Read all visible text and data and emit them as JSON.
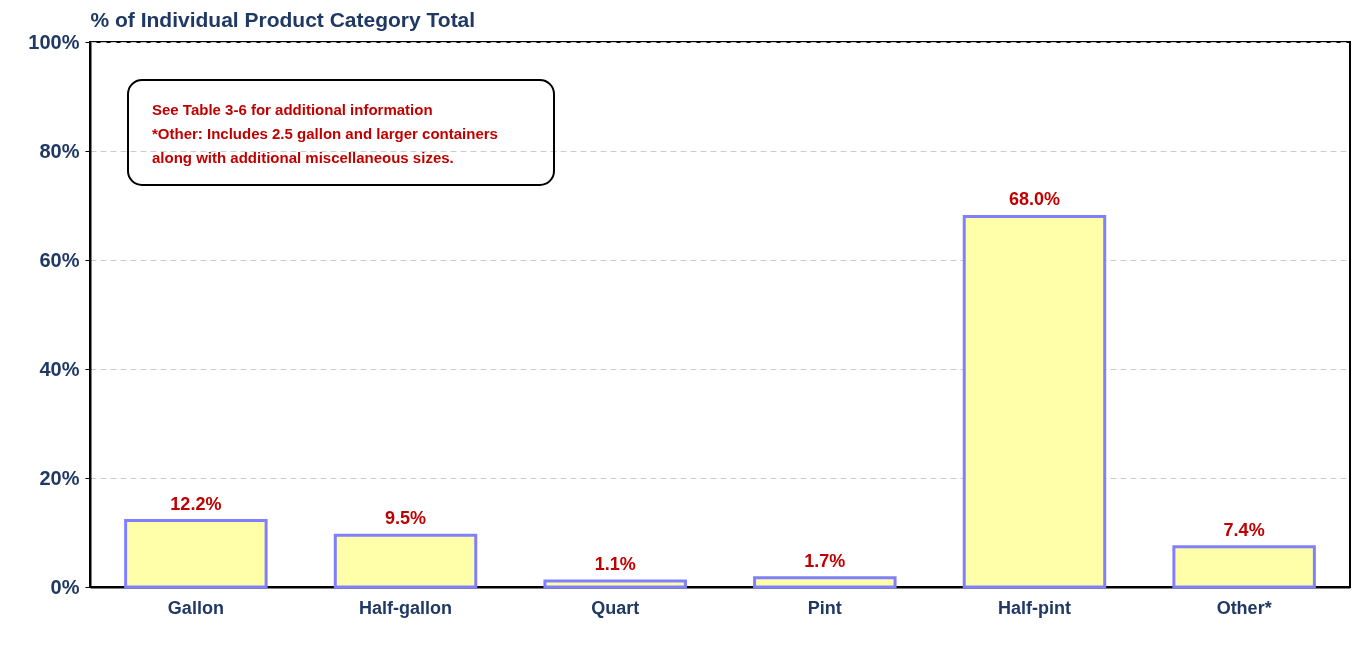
{
  "chart_data": {
    "type": "bar",
    "ylabel": "% of Individual Product Category Total",
    "categories": [
      "Gallon",
      "Half-gallon",
      "Quart",
      "Pint",
      "Half-pint",
      "Other*"
    ],
    "values": [
      12.2,
      9.5,
      1.1,
      1.7,
      68.0,
      7.4
    ],
    "value_labels": [
      "12.2%",
      "9.5%",
      "1.1%",
      "1.7%",
      "68.0%",
      "7.4%"
    ],
    "color": "#ffffaa",
    "ylim": [
      0,
      100
    ],
    "yticks": [
      {
        "value": 0,
        "label": "0%"
      },
      {
        "value": 20,
        "label": "20%"
      },
      {
        "value": 40,
        "label": "40%"
      },
      {
        "value": 60,
        "label": "60%"
      },
      {
        "value": 80,
        "label": "80%"
      },
      {
        "value": 100,
        "label": "100%"
      }
    ],
    "grid": "y",
    "annotations": [
      "See Table 3-6 for additional information",
      "*Other: Includes 2.5 gallon and larger containers",
      "along with additional miscellaneous sizes."
    ]
  }
}
